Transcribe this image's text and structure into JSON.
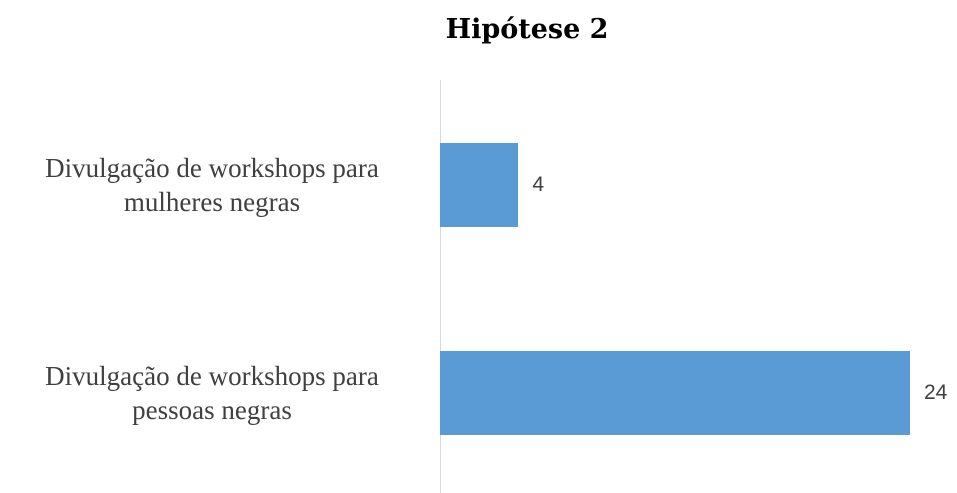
{
  "chart_data": {
    "type": "bar",
    "orientation": "horizontal",
    "title": "Hipótese 2",
    "categories": [
      "Divulgação de workshops para mulheres negras",
      "Divulgação de workshops para pessoas negras"
    ],
    "values": [
      4,
      24
    ],
    "color": "#5b9bd5"
  }
}
